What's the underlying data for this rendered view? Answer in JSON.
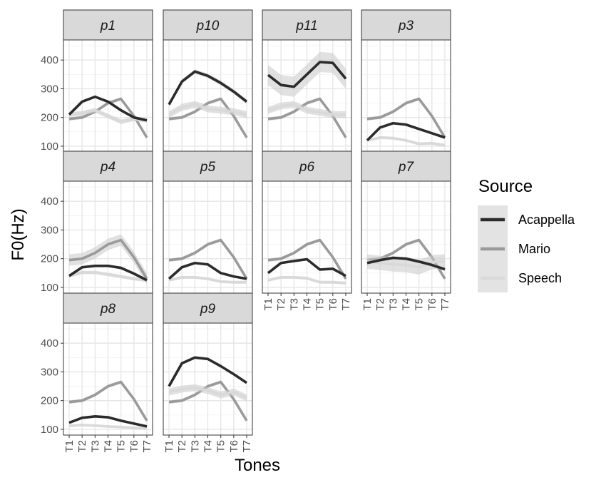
{
  "chart_data": {
    "type": "line",
    "facet_variable": "participant",
    "x_label": "Tones",
    "y_label": "F0(Hz)",
    "categories": [
      "T1",
      "T2",
      "T3",
      "T4",
      "T5",
      "T6",
      "T7"
    ],
    "ylim": [
      80,
      470
    ],
    "y_ticks": [
      100,
      200,
      300,
      400
    ],
    "grid": true,
    "legend": {
      "title": "Source",
      "position": "right",
      "entries": [
        {
          "name": "Acappella",
          "color": "#2b2b2b"
        },
        {
          "name": "Mario",
          "color": "#9a9a9a"
        },
        {
          "name": "Speech",
          "color": "#d9d9d9"
        }
      ]
    },
    "ribbon_color": "#c9c9c9",
    "mario_values": [
      195,
      200,
      220,
      250,
      265,
      205,
      130
    ],
    "facets": [
      {
        "label": "p1",
        "acappella": {
          "values": [
            210,
            255,
            272,
            255,
            225,
            200,
            190
          ],
          "band": 4
        },
        "speech": {
          "values": [
            210,
            215,
            225,
            205,
            185,
            195,
            190
          ],
          "band": 8
        }
      },
      {
        "label": "p10",
        "acappella": {
          "values": [
            245,
            325,
            360,
            345,
            320,
            290,
            255
          ],
          "band": 8
        },
        "speech": {
          "values": [
            210,
            235,
            245,
            230,
            225,
            220,
            210
          ],
          "band": 12
        }
      },
      {
        "label": "p11",
        "acappella": {
          "values": [
            348,
            313,
            307,
            350,
            393,
            390,
            335
          ],
          "band": 35
        },
        "speech": {
          "values": [
            225,
            240,
            245,
            225,
            218,
            210,
            210
          ],
          "band": 12
        }
      },
      {
        "label": "p3",
        "acappella": {
          "values": [
            120,
            165,
            180,
            175,
            160,
            145,
            130
          ],
          "band": 4
        },
        "speech": {
          "values": [
            120,
            130,
            128,
            120,
            108,
            110,
            103
          ],
          "band": 5
        }
      },
      {
        "label": "p4",
        "acappella": {
          "values": [
            140,
            170,
            175,
            175,
            168,
            148,
            125
          ],
          "band": 5
        },
        "speech": {
          "values": [
            140,
            152,
            152,
            145,
            138,
            130,
            125
          ],
          "band": 6
        },
        "mario_band": 20
      },
      {
        "label": "p5",
        "acappella": {
          "values": [
            130,
            170,
            185,
            180,
            150,
            138,
            130
          ],
          "band": 4
        },
        "speech": {
          "values": [
            125,
            135,
            135,
            130,
            120,
            118,
            118
          ],
          "band": 5
        }
      },
      {
        "label": "p6",
        "acappella": {
          "values": [
            150,
            185,
            192,
            198,
            162,
            165,
            140
          ],
          "band": 4
        },
        "speech": {
          "values": [
            125,
            135,
            135,
            132,
            118,
            118,
            115
          ],
          "band": 5
        }
      },
      {
        "label": "p7",
        "acappella": {
          "values": [
            185,
            195,
            203,
            200,
            190,
            178,
            163
          ],
          "band": 6
        },
        "speech": {
          "values": [
            190,
            185,
            180,
            178,
            170,
            188,
            190
          ],
          "band": 25
        }
      },
      {
        "label": "p8",
        "acappella": {
          "values": [
            123,
            140,
            145,
            142,
            130,
            120,
            110
          ],
          "band": 4
        },
        "speech": {
          "values": [
            112,
            115,
            113,
            110,
            108,
            105,
            103
          ],
          "band": 4
        }
      },
      {
        "label": "p9",
        "acappella": {
          "values": [
            250,
            330,
            350,
            345,
            320,
            292,
            262
          ],
          "band": 4
        },
        "speech": {
          "values": [
            230,
            240,
            245,
            235,
            220,
            230,
            210
          ],
          "band": 12
        }
      }
    ]
  }
}
